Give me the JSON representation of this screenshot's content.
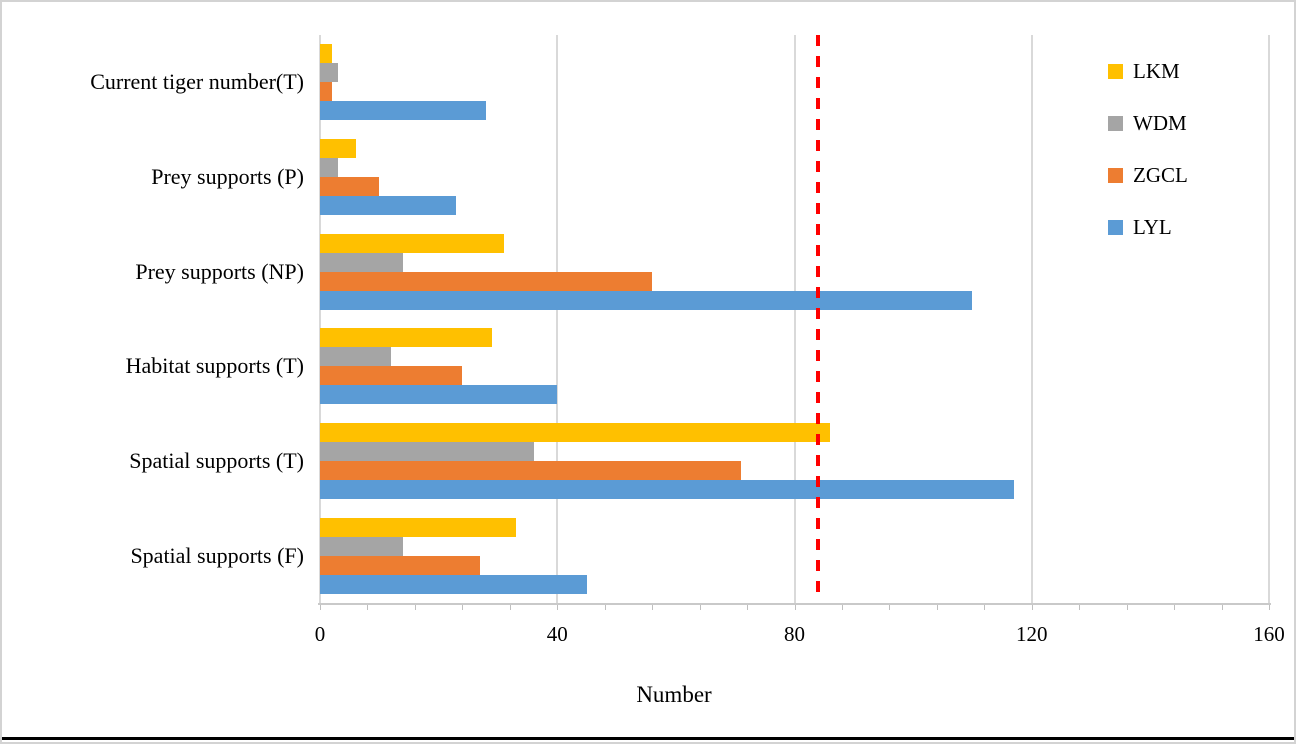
{
  "chart_data": {
    "type": "bar",
    "orientation": "horizontal",
    "xlabel": "Number",
    "categories": [
      "Current tiger number(T)",
      "Prey supports (P)",
      "Prey supports (NP)",
      "Habitat supports (T)",
      "Spatial supports (T)",
      "Spatial supports (F)"
    ],
    "series": [
      {
        "name": "LKM",
        "color": "#FFC000",
        "values": [
          2,
          6,
          31,
          29,
          86,
          33
        ]
      },
      {
        "name": "WDM",
        "color": "#A5A5A5",
        "values": [
          3,
          3,
          14,
          12,
          36,
          14
        ]
      },
      {
        "name": "ZGCL",
        "color": "#ED7D31",
        "values": [
          2,
          10,
          56,
          24,
          71,
          27
        ]
      },
      {
        "name": "LYL",
        "color": "#5B9BD5",
        "values": [
          28,
          23,
          110,
          40,
          117,
          45
        ]
      }
    ],
    "xlim": [
      0,
      160
    ],
    "xticks": [
      0,
      40,
      80,
      120,
      160
    ],
    "minor_tick_unit": 8,
    "reference_line": {
      "value": 84,
      "color": "#FF0000",
      "style": "dashed"
    },
    "legend_position": "top-right",
    "grid": "vertical"
  }
}
